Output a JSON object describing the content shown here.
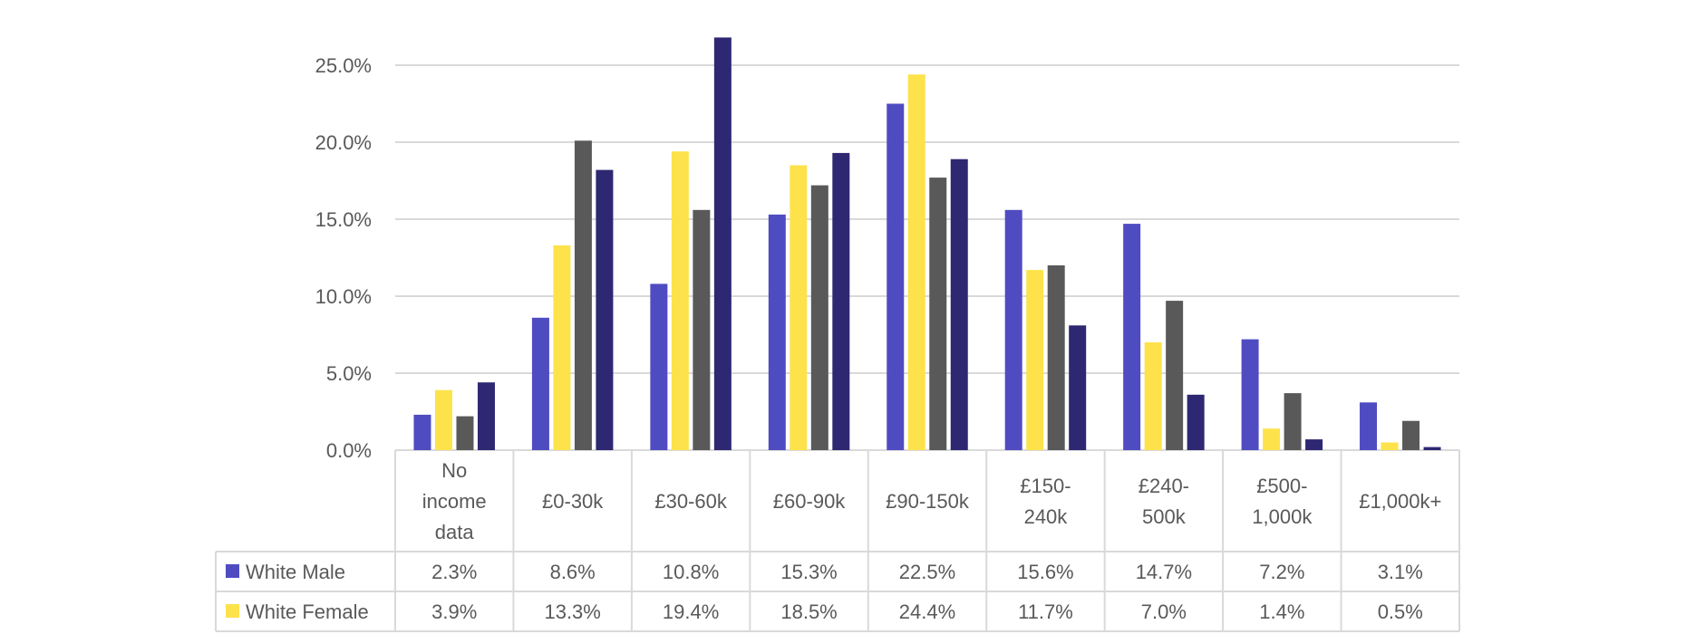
{
  "chart_data": {
    "type": "bar",
    "categories": [
      [
        "No",
        "income",
        "data"
      ],
      [
        "£0-30k"
      ],
      [
        "£30-60k"
      ],
      [
        "£60-90k"
      ],
      [
        "£90-150k"
      ],
      [
        "£150-",
        "240k"
      ],
      [
        "£240-",
        "500k"
      ],
      [
        "£500-",
        "1,000k"
      ],
      [
        "£1,000k+"
      ]
    ],
    "ylim": [
      0,
      25
    ],
    "yticks": [
      "0.0%",
      "5.0%",
      "10.0%",
      "15.0%",
      "20.0%",
      "25.0%"
    ],
    "grid": true,
    "series": [
      {
        "name": "White Male",
        "color": "#4f4cc2",
        "in_table": true,
        "values": [
          2.3,
          8.6,
          10.8,
          15.3,
          22.5,
          15.6,
          14.7,
          7.2,
          3.1
        ],
        "labels": [
          "2.3%",
          "8.6%",
          "10.8%",
          "15.3%",
          "22.5%",
          "15.6%",
          "14.7%",
          "7.2%",
          "3.1%"
        ]
      },
      {
        "name": "White Female",
        "color": "#fde24b",
        "in_table": true,
        "values": [
          3.9,
          13.3,
          19.4,
          18.5,
          24.4,
          11.7,
          7.0,
          1.4,
          0.5
        ],
        "labels": [
          "3.9%",
          "13.3%",
          "19.4%",
          "18.5%",
          "24.4%",
          "11.7%",
          "7.0%",
          "1.4%",
          "0.5%"
        ]
      },
      {
        "color": "#595959",
        "in_table": false,
        "values": [
          2.2,
          20.1,
          15.6,
          17.2,
          17.7,
          12.0,
          9.7,
          3.7,
          1.9
        ]
      },
      {
        "color": "#2e2872",
        "in_table": false,
        "values": [
          4.4,
          18.2,
          26.8,
          19.3,
          18.9,
          8.1,
          3.6,
          0.7,
          0.2
        ]
      }
    ]
  }
}
